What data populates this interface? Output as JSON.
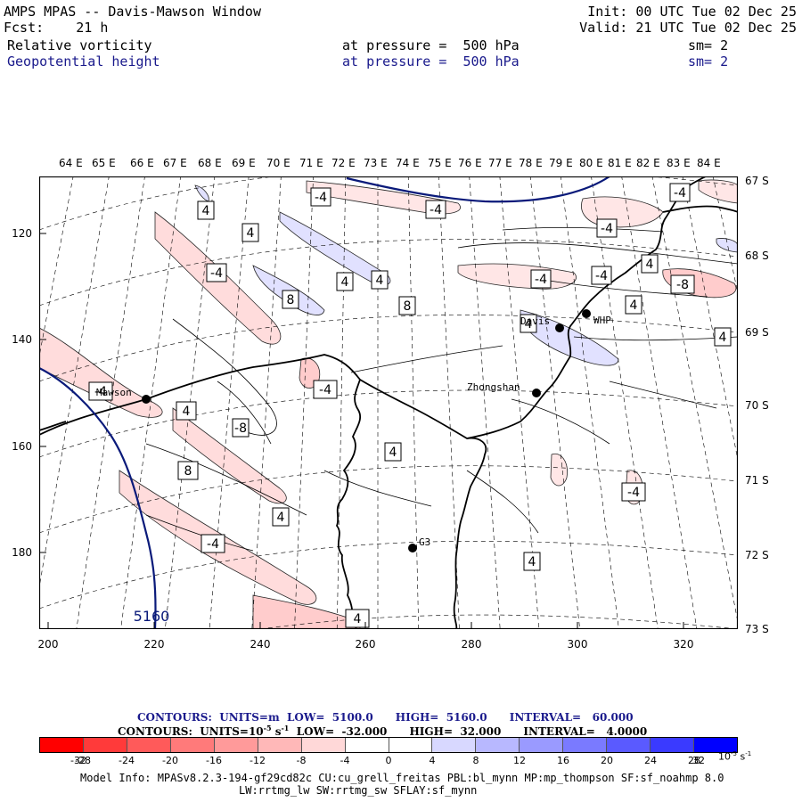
{
  "header": {
    "title": "AMPS MPAS -- Davis-Mawson Window",
    "fcst_label": "Fcst:",
    "fcst_value": "21 h",
    "init": "Init: 00 UTC Tue 02 Dec 25",
    "valid": "Valid: 21 UTC Tue 02 Dec 25",
    "field1": {
      "name": "Relative vorticity",
      "level": "at pressure =  500 hPa",
      "smooth": "sm= 2"
    },
    "field2": {
      "name": "Geopotential height",
      "level": "at pressure =  500 hPa",
      "smooth": "sm= 2"
    }
  },
  "axes": {
    "lon_labels": [
      "64 E",
      "65 E",
      "66 E",
      "67 E",
      "68 E",
      "69 E",
      "70 E",
      "71 E",
      "72 E",
      "73 E",
      "74 E",
      "75 E",
      "76 E",
      "77 E",
      "78 E",
      "79 E",
      "80 E",
      "81 E",
      "82 E",
      "83 E",
      "84 E"
    ],
    "lat_labels": [
      "67 S",
      "68 S",
      "69 S",
      "70 S",
      "71 S",
      "72 S",
      "73 S"
    ],
    "y_ticks": [
      "120",
      "140",
      "160",
      "180"
    ],
    "x_ticks": [
      "200",
      "220",
      "240",
      "260",
      "280",
      "300",
      "320"
    ]
  },
  "map": {
    "stations": [
      {
        "name": "Mawson"
      },
      {
        "name": "Davis"
      },
      {
        "name": "WHP"
      },
      {
        "name": "Zhongshan"
      },
      {
        "name": "G3"
      }
    ],
    "contour_labels": [
      "-4",
      "4",
      "-4",
      "4",
      "-4",
      "4",
      "8",
      "4",
      "4",
      "8",
      "-4",
      "-4",
      "-4",
      "4",
      "-4",
      "4",
      "4",
      "-4",
      "4",
      "4",
      "-8",
      "4",
      "4",
      "-4",
      "8",
      "4",
      "-4",
      "4",
      "-4",
      "-4",
      "-8",
      "4",
      "4",
      "-8",
      "4"
    ],
    "height_label": "5160"
  },
  "contours": {
    "line1": "CONTOURS:  UNITS=m  LOW=  5100.0      HIGH=  5160.0      INTERVAL=   60.000",
    "line2": "CONTOURS:  UNITS=10",
    "line2_exp": "-5",
    "line2_rest": " s",
    "line2_exp2": "-1",
    "line2_tail": "  LOW=  -32.000      HIGH=  32.000      INTERVAL=   4.0000"
  },
  "colorbar": {
    "colors": [
      "#ff0000",
      "#ff3a3a",
      "#ff5a5a",
      "#ff7a7a",
      "#ff9a9a",
      "#ffb8b8",
      "#ffd8d8",
      "#ffffff",
      "#ffffff",
      "#d8d8ff",
      "#b8b8ff",
      "#9a9aff",
      "#7a7aff",
      "#5a5aff",
      "#3a3aff",
      "#0000ff"
    ],
    "labels": [
      "-32",
      "-28",
      "-24",
      "-20",
      "-16",
      "-12",
      "-8",
      "-4",
      "0",
      "4",
      "8",
      "12",
      "16",
      "20",
      "24",
      "28",
      "32"
    ],
    "units": "10",
    "units_exp": "-5",
    "units_tail": " s",
    "units_exp2": "-1"
  },
  "model_info": {
    "line1": "Model Info: MPASv8.2.3-194-gf29cd82c CU:cu_grell_freitas PBL:bl_mynn MP:mp_thompson SF:sf_noahmp 8.0",
    "line2": "LW:rrtmg_lw SW:rrtmg_sw SFLAY:sf_mynn"
  }
}
